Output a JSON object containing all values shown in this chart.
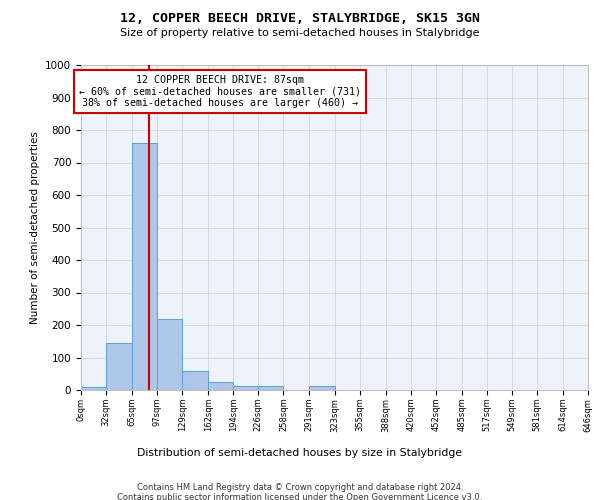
{
  "title": "12, COPPER BEECH DRIVE, STALYBRIDGE, SK15 3GN",
  "subtitle": "Size of property relative to semi-detached houses in Stalybridge",
  "xlabel": "Distribution of semi-detached houses by size in Stalybridge",
  "ylabel": "Number of semi-detached properties",
  "bar_edges": [
    0,
    32,
    65,
    97,
    129,
    162,
    194,
    226,
    258,
    291,
    323,
    355,
    388,
    420,
    452,
    485,
    517,
    549,
    581,
    614,
    646
  ],
  "bar_values": [
    8,
    145,
    760,
    218,
    57,
    25,
    13,
    12,
    0,
    11,
    0,
    0,
    0,
    0,
    0,
    0,
    0,
    0,
    0,
    0
  ],
  "bar_color": "#aec6e8",
  "bar_edge_color": "#5a9fd4",
  "property_value": 87,
  "vline_color": "#cc0000",
  "annotation_line1": "12 COPPER BEECH DRIVE: 87sqm",
  "annotation_line2": "← 60% of semi-detached houses are smaller (731)",
  "annotation_line3": "38% of semi-detached houses are larger (460) →",
  "annotation_box_color": "#ffffff",
  "annotation_box_edge_color": "#cc0000",
  "ylim": [
    0,
    1000
  ],
  "yticks": [
    0,
    100,
    200,
    300,
    400,
    500,
    600,
    700,
    800,
    900,
    1000
  ],
  "tick_labels": [
    "0sqm",
    "32sqm",
    "65sqm",
    "97sqm",
    "129sqm",
    "162sqm",
    "194sqm",
    "226sqm",
    "258sqm",
    "291sqm",
    "323sqm",
    "355sqm",
    "388sqm",
    "420sqm",
    "452sqm",
    "485sqm",
    "517sqm",
    "549sqm",
    "581sqm",
    "614sqm",
    "646sqm"
  ],
  "footer_line1": "Contains HM Land Registry data © Crown copyright and database right 2024.",
  "footer_line2": "Contains public sector information licensed under the Open Government Licence v3.0.",
  "grid_color": "#d0d8e8",
  "background_color": "#eef2fa"
}
